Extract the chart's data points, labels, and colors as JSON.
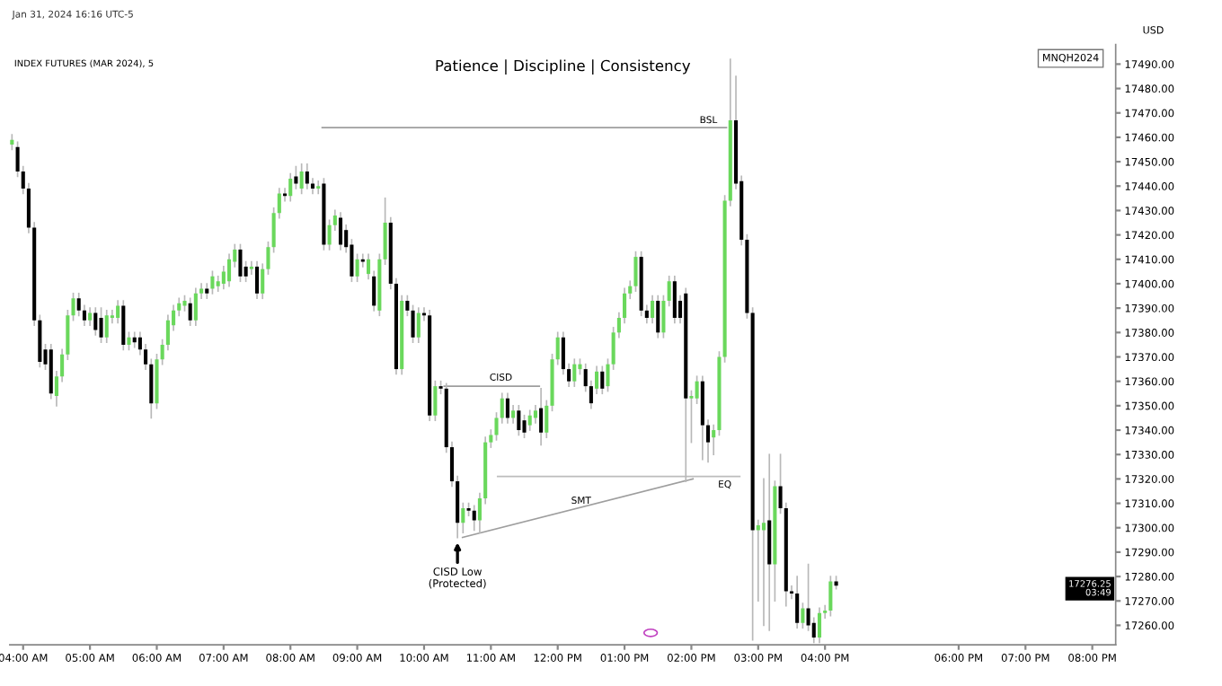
{
  "chart_data": {
    "type": "candlestick",
    "title": "Patience | Discipline | Consistency",
    "subtitle": "INDEX FUTURES (MAR 2024), 5",
    "annotations": [
      "Jan 31, 2024 16:16 UTC-5",
      "MNQH2024",
      "USD",
      {
        "text": "BSL",
        "x": 14.5,
        "y": 17464
      },
      {
        "text": "CISD",
        "x": 11.15,
        "y": 17358
      },
      {
        "text": "EQ",
        "x": 14.5,
        "y": 17321
      },
      {
        "text": "SMT",
        "x": 12.35,
        "y": 17307
      },
      {
        "text": "CISD Low\n(Protected)",
        "x": 10.5,
        "y": 17296
      },
      "17276.25\n03:49"
    ],
    "x": [
      3.833,
      3.917,
      4.0,
      4.083,
      4.167,
      4.25,
      4.333,
      4.417,
      4.5,
      4.583,
      4.667,
      4.75,
      4.833,
      4.917,
      5.0,
      5.083,
      5.167,
      5.25,
      5.333,
      5.417,
      5.5,
      5.583,
      5.667,
      5.75,
      5.833,
      5.917,
      6.0,
      6.083,
      6.167,
      6.25,
      6.333,
      6.417,
      6.5,
      6.583,
      6.667,
      6.75,
      6.833,
      6.917,
      7.0,
      7.083,
      7.167,
      7.25,
      7.333,
      7.417,
      7.5,
      7.583,
      7.667,
      7.75,
      7.833,
      7.917,
      8.0,
      8.083,
      8.167,
      8.25,
      8.333,
      8.417,
      8.5,
      8.583,
      8.667,
      8.75,
      8.833,
      8.917,
      9.0,
      9.083,
      9.167,
      9.25,
      9.333,
      9.417,
      9.5,
      9.583,
      9.667,
      9.75,
      9.833,
      9.917,
      10.0,
      10.083,
      10.167,
      10.25,
      10.333,
      10.417,
      10.5,
      10.583,
      10.667,
      10.75,
      10.833,
      10.917,
      11.0,
      11.083,
      11.167,
      11.25,
      11.333,
      11.417,
      11.5,
      11.583,
      11.667,
      11.75,
      11.833,
      11.917,
      12.0,
      12.083,
      12.167,
      12.25,
      12.333,
      12.417,
      12.5,
      12.583,
      12.667,
      12.75,
      12.833,
      12.917,
      13.0,
      13.083,
      13.167,
      13.25,
      13.333,
      13.417,
      13.5,
      13.583,
      13.667,
      13.75,
      13.833,
      13.917,
      14.0,
      14.083,
      14.167,
      14.25,
      14.333,
      14.417,
      14.5,
      14.583,
      14.667,
      14.75,
      14.833,
      14.917,
      15.0,
      15.083,
      15.167,
      15.25,
      15.333,
      15.417,
      15.5,
      15.583,
      15.667,
      15.75,
      15.833,
      15.917,
      16.0,
      16.083,
      16.167
    ],
    "ohlc": [
      [
        17457,
        17461,
        17455,
        17459
      ],
      [
        17456,
        17458,
        17444,
        17446
      ],
      [
        17446,
        17448,
        17437,
        17439
      ],
      [
        17439,
        17441,
        17421,
        17423
      ],
      [
        17423,
        17425,
        17383,
        17385
      ],
      [
        17385,
        17387,
        17366,
        17368
      ],
      [
        17373,
        17375,
        17365,
        17367
      ],
      [
        17373,
        17375,
        17353,
        17355
      ],
      [
        17354,
        17364,
        17350,
        17362
      ],
      [
        17362,
        17373,
        17360,
        17371
      ],
      [
        17371,
        17389,
        17369,
        17387
      ],
      [
        17387,
        17396,
        17385,
        17394
      ],
      [
        17394,
        17396,
        17387,
        17389
      ],
      [
        17389,
        17391,
        17383,
        17385
      ],
      [
        17385,
        17390,
        17383,
        17388
      ],
      [
        17388,
        17390,
        17379,
        17381
      ],
      [
        17386,
        17390,
        17376,
        17378
      ],
      [
        17378,
        17389,
        17376,
        17387
      ],
      [
        17386,
        17389,
        17384,
        17387
      ],
      [
        17386,
        17393,
        17384,
        17391
      ],
      [
        17391,
        17393,
        17373,
        17375
      ],
      [
        17375,
        17380,
        17373,
        17378
      ],
      [
        17378,
        17380,
        17374,
        17376
      ],
      [
        17378,
        17380,
        17371,
        17373
      ],
      [
        17373,
        17375,
        17365,
        17367
      ],
      [
        17367,
        17369,
        17345,
        17351
      ],
      [
        17351,
        17371,
        17349,
        17369
      ],
      [
        17369,
        17377,
        17367,
        17375
      ],
      [
        17375,
        17387,
        17373,
        17385
      ],
      [
        17383,
        17391,
        17381,
        17389
      ],
      [
        17389,
        17394,
        17387,
        17392
      ],
      [
        17391,
        17395,
        17389,
        17393
      ],
      [
        17392,
        17394,
        17383,
        17385
      ],
      [
        17385,
        17398,
        17383,
        17396
      ],
      [
        17396,
        17400,
        17394,
        17398
      ],
      [
        17398,
        17400,
        17394,
        17396
      ],
      [
        17398,
        17405,
        17396,
        17403
      ],
      [
        17399,
        17403,
        17397,
        17401
      ],
      [
        17400,
        17407,
        17398,
        17405
      ],
      [
        17401,
        17412,
        17399,
        17410
      ],
      [
        17409,
        17416,
        17407,
        17414
      ],
      [
        17414,
        17416,
        17401,
        17403
      ],
      [
        17407,
        17409,
        17401,
        17403
      ],
      [
        17406,
        17409,
        17404,
        17407
      ],
      [
        17407,
        17409,
        17394,
        17396
      ],
      [
        17396,
        17408,
        17394,
        17406
      ],
      [
        17406,
        17417,
        17404,
        17415
      ],
      [
        17415,
        17431,
        17413,
        17429
      ],
      [
        17429,
        17439,
        17427,
        17437
      ],
      [
        17437,
        17439,
        17434,
        17436
      ],
      [
        17436,
        17445,
        17434,
        17443
      ],
      [
        17444,
        17448,
        17439,
        17441
      ],
      [
        17439,
        17449,
        17437,
        17446
      ],
      [
        17446,
        17449,
        17439,
        17441
      ],
      [
        17441,
        17443,
        17437,
        17439
      ],
      [
        17439,
        17442,
        17437,
        17440
      ],
      [
        17441,
        17443,
        17414,
        17416
      ],
      [
        17416,
        17426,
        17414,
        17424
      ],
      [
        17424,
        17430,
        17422,
        17428
      ],
      [
        17427,
        17429,
        17414,
        17416
      ],
      [
        17422,
        17424,
        17413,
        17415
      ],
      [
        17416,
        17418,
        17401,
        17403
      ],
      [
        17403,
        17412,
        17401,
        17410
      ],
      [
        17410,
        17412,
        17407,
        17409
      ],
      [
        17404,
        17412,
        17402,
        17410
      ],
      [
        17403,
        17405,
        17389,
        17391
      ],
      [
        17389,
        17412,
        17387,
        17410
      ],
      [
        17410,
        17435,
        17408,
        17425
      ],
      [
        17425,
        17427,
        17398,
        17400
      ],
      [
        17400,
        17402,
        17363,
        17365
      ],
      [
        17365,
        17395,
        17363,
        17393
      ],
      [
        17393,
        17395,
        17387,
        17389
      ],
      [
        17389,
        17391,
        17376,
        17378
      ],
      [
        17378,
        17390,
        17376,
        17388
      ],
      [
        17388,
        17390,
        17385,
        17387
      ],
      [
        17387,
        17389,
        17344,
        17346
      ],
      [
        17346,
        17360,
        17344,
        17358
      ],
      [
        17358,
        17360,
        17355,
        17357
      ],
      [
        17357,
        17359,
        17331,
        17333
      ],
      [
        17333,
        17335,
        17317,
        17319
      ],
      [
        17319,
        17321,
        17296,
        17302
      ],
      [
        17302,
        17310,
        17298,
        17308
      ],
      [
        17308,
        17310,
        17305,
        17307
      ],
      [
        17307,
        17309,
        17299,
        17303
      ],
      [
        17303,
        17314,
        17298,
        17312
      ],
      [
        17312,
        17337,
        17310,
        17335
      ],
      [
        17335,
        17340,
        17333,
        17338
      ],
      [
        17338,
        17347,
        17336,
        17345
      ],
      [
        17345,
        17355,
        17343,
        17353
      ],
      [
        17353,
        17355,
        17343,
        17345
      ],
      [
        17345,
        17350,
        17343,
        17348
      ],
      [
        17348,
        17350,
        17338,
        17340
      ],
      [
        17344,
        17346,
        17337,
        17339
      ],
      [
        17342,
        17348,
        17340,
        17346
      ],
      [
        17345,
        17350,
        17343,
        17348
      ],
      [
        17349,
        17357,
        17334,
        17339
      ],
      [
        17339,
        17352,
        17337,
        17350
      ],
      [
        17350,
        17371,
        17348,
        17369
      ],
      [
        17369,
        17380,
        17367,
        17378
      ],
      [
        17378,
        17380,
        17363,
        17365
      ],
      [
        17365,
        17367,
        17358,
        17360
      ],
      [
        17360,
        17369,
        17358,
        17367
      ],
      [
        17365,
        17369,
        17363,
        17367
      ],
      [
        17365,
        17367,
        17356,
        17358
      ],
      [
        17358,
        17360,
        17349,
        17351
      ],
      [
        17357,
        17366,
        17355,
        17364
      ],
      [
        17364,
        17366,
        17355,
        17357
      ],
      [
        17358,
        17369,
        17356,
        17367
      ],
      [
        17367,
        17382,
        17365,
        17380
      ],
      [
        17380,
        17388,
        17378,
        17386
      ],
      [
        17386,
        17398,
        17384,
        17396
      ],
      [
        17396,
        17401,
        17394,
        17399
      ],
      [
        17399,
        17413,
        17397,
        17411
      ],
      [
        17411,
        17413,
        17387,
        17389
      ],
      [
        17389,
        17391,
        17384,
        17386
      ],
      [
        17386,
        17395,
        17384,
        17393
      ],
      [
        17393,
        17395,
        17378,
        17380
      ],
      [
        17380,
        17395,
        17378,
        17393
      ],
      [
        17393,
        17403,
        17391,
        17401
      ],
      [
        17401,
        17403,
        17384,
        17386
      ],
      [
        17393,
        17395,
        17384,
        17386
      ],
      [
        17396,
        17398,
        17319,
        17353
      ],
      [
        17353,
        17356,
        17335,
        17354
      ],
      [
        17353,
        17362,
        17351,
        17360
      ],
      [
        17360,
        17362,
        17328,
        17342
      ],
      [
        17342,
        17344,
        17327,
        17335
      ],
      [
        17337,
        17342,
        17330,
        17340
      ],
      [
        17340,
        17372,
        17338,
        17370
      ],
      [
        17370,
        17436,
        17368,
        17434
      ],
      [
        17434,
        17492,
        17432,
        17467
      ],
      [
        17467,
        17485,
        17439,
        17441
      ],
      [
        17442,
        17444,
        17416,
        17418
      ],
      [
        17418,
        17420,
        17386,
        17388
      ],
      [
        17388,
        17390,
        17254,
        17299
      ],
      [
        17299,
        17303,
        17270,
        17301
      ],
      [
        17299,
        17320,
        17260,
        17302
      ],
      [
        17303,
        17330,
        17258,
        17285
      ],
      [
        17285,
        17319,
        17270,
        17317
      ],
      [
        17317,
        17330,
        17306,
        17308
      ],
      [
        17308,
        17310,
        17268,
        17274
      ],
      [
        17274,
        17276,
        17271,
        17273
      ],
      [
        17273,
        17280,
        17259,
        17261
      ],
      [
        17261,
        17269,
        17259,
        17267
      ],
      [
        17267,
        17285,
        17258,
        17260
      ],
      [
        17261,
        17263,
        17253,
        17255
      ],
      [
        17255,
        17267,
        17253,
        17265
      ],
      [
        17265,
        17268,
        17263,
        17266
      ],
      [
        17266,
        17280,
        17264,
        17278
      ],
      [
        17278,
        17280,
        17275,
        17276.25
      ]
    ],
    "colors": [
      "#6ad85c",
      "#000000",
      "#000000",
      "#000000",
      "#000000",
      "#000000",
      "#000000",
      "#000000",
      "#6ad85c",
      "#6ad85c",
      "#6ad85c",
      "#6ad85c",
      "#000000",
      "#000000",
      "#6ad85c",
      "#000000",
      "#000000",
      "#6ad85c",
      "#6ad85c",
      "#6ad85c",
      "#000000",
      "#6ad85c",
      "#000000",
      "#000000",
      "#000000",
      "#000000",
      "#6ad85c",
      "#6ad85c",
      "#6ad85c",
      "#6ad85c",
      "#6ad85c",
      "#6ad85c",
      "#000000",
      "#6ad85c",
      "#6ad85c",
      "#000000",
      "#6ad85c",
      "#6ad85c",
      "#6ad85c",
      "#6ad85c",
      "#6ad85c",
      "#000000",
      "#000000",
      "#6ad85c",
      "#000000",
      "#6ad85c",
      "#6ad85c",
      "#6ad85c",
      "#6ad85c",
      "#000000",
      "#6ad85c",
      "#000000",
      "#6ad85c",
      "#000000",
      "#000000",
      "#6ad85c",
      "#000000",
      "#6ad85c",
      "#6ad85c",
      "#000000",
      "#000000",
      "#000000",
      "#6ad85c",
      "#000000",
      "#6ad85c",
      "#000000",
      "#6ad85c",
      "#6ad85c",
      "#000000",
      "#000000",
      "#6ad85c",
      "#000000",
      "#000000",
      "#6ad85c",
      "#000000",
      "#000000",
      "#6ad85c",
      "#000000",
      "#000000",
      "#000000",
      "#000000",
      "#6ad85c",
      "#000000",
      "#000000",
      "#6ad85c",
      "#6ad85c",
      "#6ad85c",
      "#6ad85c",
      "#6ad85c",
      "#000000",
      "#6ad85c",
      "#000000",
      "#000000",
      "#6ad85c",
      "#6ad85c",
      "#000000",
      "#6ad85c",
      "#6ad85c",
      "#6ad85c",
      "#000000",
      "#000000",
      "#6ad85c",
      "#6ad85c",
      "#000000",
      "#000000",
      "#6ad85c",
      "#000000",
      "#6ad85c",
      "#6ad85c",
      "#6ad85c",
      "#6ad85c",
      "#6ad85c",
      "#6ad85c",
      "#000000",
      "#000000",
      "#6ad85c",
      "#000000",
      "#6ad85c",
      "#6ad85c",
      "#000000",
      "#000000",
      "#000000",
      "#6ad85c",
      "#6ad85c",
      "#000000",
      "#000000",
      "#6ad85c",
      "#6ad85c",
      "#6ad85c",
      "#6ad85c",
      "#000000",
      "#000000",
      "#000000",
      "#000000",
      "#6ad85c",
      "#6ad85c",
      "#000000",
      "#6ad85c",
      "#000000",
      "#000000",
      "#000000",
      "#000000",
      "#6ad85c",
      "#000000",
      "#000000",
      "#6ad85c",
      "#6ad85c",
      "#6ad85c",
      "#000000"
    ],
    "series": [
      {
        "type": "line",
        "color": "#9e9e9e",
        "x": [
          8.475,
          14.525
        ],
        "values": [
          17464,
          17464
        ]
      },
      {
        "type": "line",
        "color": "#9e9e9e",
        "x": [
          10.3,
          11.725
        ],
        "values": [
          17358,
          17358
        ]
      },
      {
        "type": "line",
        "color": "#bdbdbd",
        "x": [
          11.1,
          14.725
        ],
        "values": [
          17321,
          17321
        ]
      },
      {
        "type": "line",
        "color": "#9e9e9e",
        "x": [
          10.575,
          14.025
        ],
        "values": [
          17296,
          17320
        ]
      }
    ],
    "xlim": [
      3.8,
      20.35
    ],
    "xticks": [
      {
        "value": 4,
        "label": "04:00 AM"
      },
      {
        "value": 5,
        "label": "05:00 AM"
      },
      {
        "value": 6,
        "label": "06:00 AM"
      },
      {
        "value": 7,
        "label": "07:00 AM"
      },
      {
        "value": 8,
        "label": "08:00 AM"
      },
      {
        "value": 9,
        "label": "09:00 AM"
      },
      {
        "value": 10,
        "label": "10:00 AM"
      },
      {
        "value": 11,
        "label": "11:00 AM"
      },
      {
        "value": 12,
        "label": "12:00 PM"
      },
      {
        "value": 13,
        "label": "01:00 PM"
      },
      {
        "value": 14,
        "label": "02:00 PM"
      },
      {
        "value": 15,
        "label": "03:00 PM"
      },
      {
        "value": 16,
        "label": "04:00 PM"
      },
      {
        "value": 18,
        "label": "06:00 PM"
      },
      {
        "value": 19,
        "label": "07:00 PM"
      },
      {
        "value": 20,
        "label": "08:00 PM"
      }
    ],
    "ylim": [
      17252,
      17498
    ],
    "yticks": [
      {
        "value": 17260,
        "label": "17260.00"
      },
      {
        "value": 17270,
        "label": "17270.00"
      },
      {
        "value": 17280,
        "label": "17280.00"
      },
      {
        "value": 17290,
        "label": "17290.00"
      },
      {
        "value": 17300,
        "label": "17300.00"
      },
      {
        "value": 17310,
        "label": "17310.00"
      },
      {
        "value": 17320,
        "label": "17320.00"
      },
      {
        "value": 17330,
        "label": "17330.00"
      },
      {
        "value": 17340,
        "label": "17340.00"
      },
      {
        "value": 17350,
        "label": "17350.00"
      },
      {
        "value": 17360,
        "label": "17360.00"
      },
      {
        "value": 17370,
        "label": "17370.00"
      },
      {
        "value": 17380,
        "label": "17380.00"
      },
      {
        "value": 17390,
        "label": "17390.00"
      },
      {
        "value": 17400,
        "label": "17400.00"
      },
      {
        "value": 17410,
        "label": "17410.00"
      },
      {
        "value": 17420,
        "label": "17420.00"
      },
      {
        "value": 17430,
        "label": "17430.00"
      },
      {
        "value": 17440,
        "label": "17440.00"
      },
      {
        "value": 17450,
        "label": "17450.00"
      },
      {
        "value": 17460,
        "label": "17460.00"
      },
      {
        "value": 17470,
        "label": "17470.00"
      },
      {
        "value": 17480,
        "label": "17480.00"
      },
      {
        "value": 17490,
        "label": "17490.00"
      }
    ]
  }
}
